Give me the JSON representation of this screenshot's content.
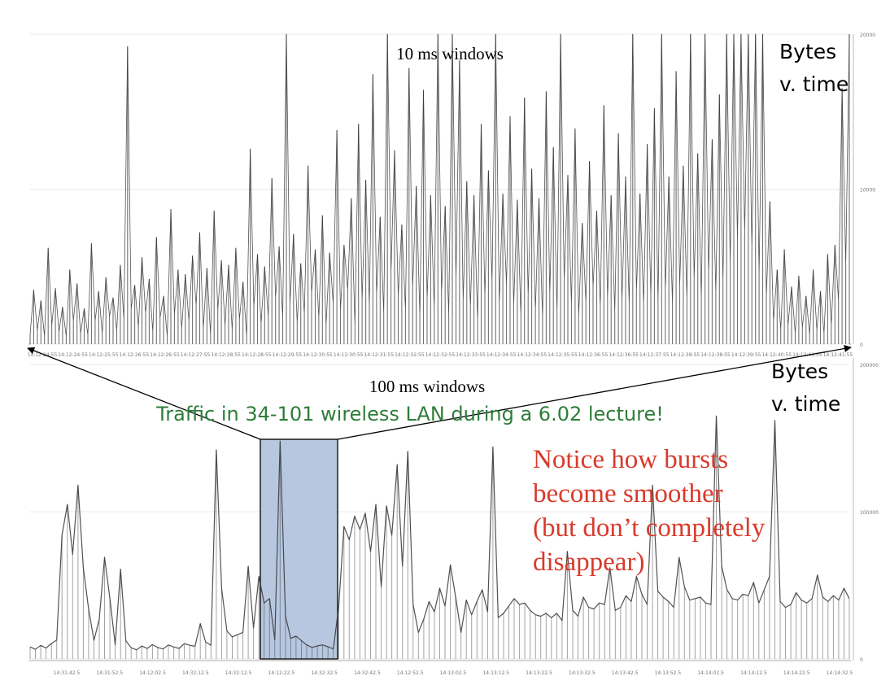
{
  "slide": {
    "top_chart_title": "10 ms windows",
    "bottom_chart_title": "100 ms windows",
    "top_side_label_line1": "Bytes",
    "top_side_label_line2": "v. time",
    "bottom_side_label_line1": "Bytes",
    "bottom_side_label_line2": "v. time",
    "caption": "Traffic in 34-101 wireless LAN during a 6.02 lecture!",
    "note_lines": [
      "Notice how bursts",
      "become smoother",
      "(but don’t completely",
      "disappear)"
    ],
    "colors": {
      "trace": "#333333",
      "caption": "#2e7d3a",
      "note": "#d93a2b",
      "highlight_fill": "#9fb4d6",
      "highlight_stroke": "#1a1a1a"
    }
  },
  "chart_data": [
    {
      "type": "line",
      "title": "10 ms windows",
      "ylabel": "Bytes",
      "xlabel": "time",
      "ylim": [
        0,
        20000
      ],
      "yticks": [
        "20000",
        "10000",
        "0"
      ],
      "xticks": [
        "14:12:24:55",
        "14:12:24:55",
        "14:12:25:55",
        "14:12:26:55",
        "14:12:26:55",
        "14:12:27:55",
        "14:12:28:55",
        "14:12:28:55",
        "14:12:29:55",
        "14:12:30:55",
        "14:12:30:55",
        "14:12:31:55",
        "14:12:32:55",
        "14:12:32:55",
        "14:12:33:55",
        "14:12:34:55",
        "14:12:34:55",
        "14:12:35:55",
        "14:12:36:55",
        "14:12:36:55",
        "14:12:37:55",
        "14:12:38:55",
        "14:12:38:55",
        "14:12:39:55",
        "14:12:40:55",
        "14:12:41:55",
        "14:12:41:55"
      ],
      "series": [
        {
          "values": [
            600,
            3500,
            900,
            2800,
            500,
            6200,
            1200,
            3600,
            800,
            2400,
            500,
            4800,
            1500,
            3900,
            700,
            2300,
            600,
            6500,
            1500,
            3400,
            700,
            4300,
            1800,
            3000,
            900,
            5100,
            1600,
            19200,
            2300,
            3800,
            1100,
            5600,
            2000,
            4200,
            800,
            6900,
            1700,
            3100,
            500,
            8700,
            1900,
            4800,
            1000,
            4500,
            1500,
            5700,
            2500,
            7200,
            1000,
            4900,
            600,
            8600,
            2200,
            5400,
            1200,
            5100,
            900,
            6200,
            1600,
            4000,
            500,
            12600,
            2400,
            5800,
            1300,
            5000,
            1800,
            10700,
            3000,
            6300,
            1700,
            20000,
            2600,
            7100,
            1400,
            5200,
            2000,
            11500,
            3300,
            6100,
            1700,
            8300,
            1200,
            5900,
            2600,
            13800,
            2200,
            6400,
            3500,
            9400,
            1200,
            14200,
            2800,
            10600,
            2500,
            17400,
            3200,
            8200,
            2000,
            20000,
            4600,
            12500,
            3100,
            7700,
            2200,
            17800,
            3600,
            10200,
            1800,
            16400,
            2900,
            9600,
            2300,
            20000,
            3300,
            8900,
            1900,
            20000,
            4200,
            18300,
            2800,
            10500,
            2400,
            9600,
            1500,
            14200,
            3100,
            11200,
            4000,
            20000,
            2600,
            9700,
            3800,
            14700,
            2500,
            9300,
            1800,
            15900,
            3100,
            11300,
            2200,
            9400,
            1700,
            16300,
            3200,
            12700,
            2000,
            20000,
            4100,
            10900,
            2600,
            13900,
            1800,
            7800,
            2700,
            11800,
            3700,
            8600,
            2400,
            15400,
            3000,
            9600,
            2100,
            13600,
            2800,
            10800,
            2500,
            20000,
            3400,
            9700,
            2600,
            12900,
            3100,
            15200,
            2700,
            20000,
            3500,
            10800,
            2600,
            17600,
            3800,
            11500,
            2900,
            20000,
            4200,
            12300,
            3000,
            20000,
            4600,
            13200,
            3300,
            16100,
            4000,
            20000,
            5200,
            20000,
            6800,
            20000,
            7200,
            20000,
            6200,
            20000,
            4500,
            20000,
            3100,
            9200,
            1500,
            4800,
            900,
            6100,
            1200,
            3700,
            700,
            4400,
            1100,
            3100,
            600,
            4800,
            900,
            3400,
            700,
            5800,
            1200,
            6400,
            2800,
            16500,
            5100,
            20000
          ]
        }
      ]
    },
    {
      "type": "line",
      "title": "100 ms windows",
      "ylabel": "Bytes",
      "xlabel": "time",
      "ylim": [
        0,
        200000
      ],
      "yticks": [
        "200000",
        "100000",
        "0"
      ],
      "xticks": [
        "14:31:42.5",
        "14:31:52.5",
        "14:12:02.5",
        "14:32:12.5",
        "14:32:12.5",
        "14:12:22.5",
        "14:32:32.5",
        "14:32:42.5",
        "14:12:52.5",
        "14:13:02.5",
        "14:13:12.5",
        "14:13:22.5",
        "14:13:32.5",
        "14:13:42.5",
        "14:13:52.5",
        "14:14:02.5",
        "14:14:12.5",
        "14:14:22.5",
        "14:14:32.5"
      ],
      "series": [
        {
          "values": [
            8200,
            6500,
            9200,
            7400,
            10500,
            12800,
            84000,
            105000,
            71000,
            118000,
            62000,
            34000,
            12600,
            27000,
            69000,
            41000,
            9600,
            61000,
            12400,
            7600,
            6200,
            8800,
            7100,
            9700,
            7800,
            6800,
            9500,
            8100,
            7200,
            10400,
            9300,
            8600,
            24000,
            11500,
            9300,
            142000,
            48000,
            19000,
            15000,
            16500,
            18000,
            63000,
            21000,
            56000,
            38000,
            41000,
            13000,
            148000,
            29000,
            14000,
            15500,
            12500,
            9500,
            7800,
            8900,
            9500,
            8300,
            6800,
            35000,
            90000,
            81000,
            97000,
            88000,
            99000,
            73000,
            105000,
            49000,
            104000,
            84000,
            132000,
            63000,
            141000,
            37000,
            18000,
            27000,
            39000,
            32000,
            48000,
            36000,
            64000,
            42000,
            18000,
            40000,
            30000,
            39000,
            47000,
            32000,
            144000,
            28000,
            31000,
            36000,
            41000,
            37000,
            38000,
            33000,
            30000,
            29000,
            31000,
            28000,
            31000,
            26000,
            73000,
            33000,
            29000,
            42000,
            35000,
            34000,
            38000,
            37000,
            62000,
            33000,
            35000,
            43000,
            39000,
            56000,
            44000,
            37000,
            118000,
            46000,
            42000,
            39000,
            35000,
            69000,
            49000,
            40000,
            41000,
            42000,
            38000,
            37000,
            165000,
            63000,
            47000,
            41000,
            40000,
            44000,
            43000,
            52000,
            38000,
            47000,
            56000,
            162000,
            39000,
            35000,
            37000,
            45000,
            40000,
            38000,
            41000,
            57000,
            42000,
            39000,
            43000,
            40000,
            48000,
            41000
          ]
        }
      ]
    }
  ]
}
